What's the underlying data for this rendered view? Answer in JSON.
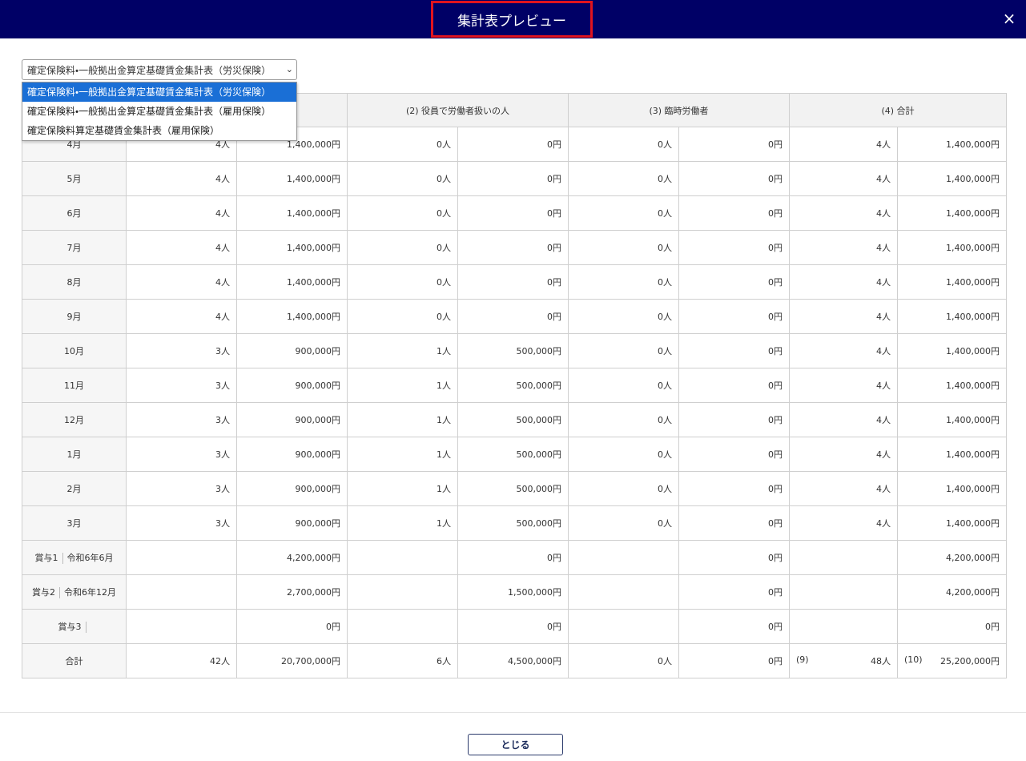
{
  "header": {
    "title": "集計表プレビュー",
    "close": "×"
  },
  "select": {
    "value": "確定保険料・一般拠出金算定基礎賃金集計表（労災保険）",
    "arrow": "⌄",
    "options": [
      "確定保険料・一般拠出金算定基礎賃金集計表（労災保険）",
      "確定保険料・一般拠出金算定基礎賃金集計表（雇用保険）",
      "確定保険料算定基礎賃金集計表（雇用保険）"
    ]
  },
  "table": {
    "groups": [
      null,
      "(2) 役員で労働者扱いの人",
      "(3) 臨時労働者",
      "(4) 合計"
    ],
    "rows": [
      {
        "label": "4月",
        "cells": [
          "4人",
          "1,400,000円",
          "0人",
          "0円",
          "0人",
          "0円",
          "4人",
          "1,400,000円"
        ]
      },
      {
        "label": "5月",
        "cells": [
          "4人",
          "1,400,000円",
          "0人",
          "0円",
          "0人",
          "0円",
          "4人",
          "1,400,000円"
        ]
      },
      {
        "label": "6月",
        "cells": [
          "4人",
          "1,400,000円",
          "0人",
          "0円",
          "0人",
          "0円",
          "4人",
          "1,400,000円"
        ]
      },
      {
        "label": "7月",
        "cells": [
          "4人",
          "1,400,000円",
          "0人",
          "0円",
          "0人",
          "0円",
          "4人",
          "1,400,000円"
        ]
      },
      {
        "label": "8月",
        "cells": [
          "4人",
          "1,400,000円",
          "0人",
          "0円",
          "0人",
          "0円",
          "4人",
          "1,400,000円"
        ]
      },
      {
        "label": "9月",
        "cells": [
          "4人",
          "1,400,000円",
          "0人",
          "0円",
          "0人",
          "0円",
          "4人",
          "1,400,000円"
        ]
      },
      {
        "label": "10月",
        "cells": [
          "3人",
          "900,000円",
          "1人",
          "500,000円",
          "0人",
          "0円",
          "4人",
          "1,400,000円"
        ]
      },
      {
        "label": "11月",
        "cells": [
          "3人",
          "900,000円",
          "1人",
          "500,000円",
          "0人",
          "0円",
          "4人",
          "1,400,000円"
        ]
      },
      {
        "label": "12月",
        "cells": [
          "3人",
          "900,000円",
          "1人",
          "500,000円",
          "0人",
          "0円",
          "4人",
          "1,400,000円"
        ]
      },
      {
        "label": "1月",
        "cells": [
          "3人",
          "900,000円",
          "1人",
          "500,000円",
          "0人",
          "0円",
          "4人",
          "1,400,000円"
        ]
      },
      {
        "label": "2月",
        "cells": [
          "3人",
          "900,000円",
          "1人",
          "500,000円",
          "0人",
          "0円",
          "4人",
          "1,400,000円"
        ]
      },
      {
        "label": "3月",
        "cells": [
          "3人",
          "900,000円",
          "1人",
          "500,000円",
          "0人",
          "0円",
          "4人",
          "1,400,000円"
        ]
      },
      {
        "label": "賞与1",
        "sublabel": "令和6年6月",
        "cells": [
          null,
          "4,200,000円",
          null,
          "0円",
          null,
          "0円",
          null,
          "4,200,000円"
        ]
      },
      {
        "label": "賞与2",
        "sublabel": "令和6年12月",
        "cells": [
          null,
          "2,700,000円",
          null,
          "1,500,000円",
          null,
          "0円",
          null,
          "4,200,000円"
        ]
      },
      {
        "label": "賞与3",
        "sublabel": null,
        "cells": [
          null,
          "0円",
          null,
          "0円",
          null,
          "0円",
          null,
          "0円"
        ]
      },
      {
        "label": "合計",
        "cells": [
          "42人",
          "20,700,000円",
          "6人",
          "4,500,000円",
          "0人",
          "0円",
          "48人",
          "25,200,000円"
        ],
        "prefixes": [
          null,
          null,
          null,
          null,
          null,
          null,
          "(9)",
          "(10)"
        ]
      }
    ]
  },
  "footer": {
    "button": "とじる"
  }
}
